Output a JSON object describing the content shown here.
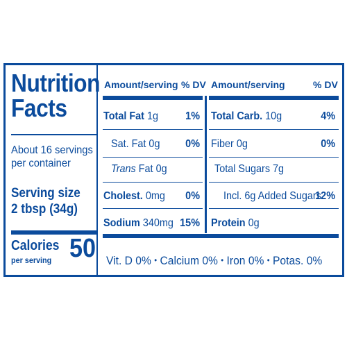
{
  "title": {
    "line1": "Nutrition",
    "line2": "Facts"
  },
  "servings": {
    "line1": "About 16 servings",
    "line2": "per container"
  },
  "serving_size": {
    "label": "Serving size",
    "value": "2 tbsp (34g)"
  },
  "calories": {
    "label": "Calories",
    "sub": "per serving",
    "value": "50"
  },
  "header": {
    "amount_left": "Amount/serving",
    "dv_left": "% DV",
    "amount_right": "Amount/serving",
    "dv_right": "% DV"
  },
  "left_rows": [
    {
      "name": "Total Fat",
      "amount": "1g",
      "dv": "1%"
    },
    {
      "name": "Sat. Fat",
      "amount": "0g",
      "dv": "0%"
    },
    {
      "name": "Trans",
      "name2": "Fat",
      "amount": "0g",
      "dv": ""
    },
    {
      "name": "Cholest.",
      "amount": "0mg",
      "dv": "0%"
    },
    {
      "name": "Sodium",
      "amount": "340mg",
      "dv": "15%"
    }
  ],
  "right_rows": [
    {
      "name": "Total Carb.",
      "amount": "10g",
      "dv": "4%"
    },
    {
      "name": "Fiber",
      "amount": "0g",
      "dv": "0%"
    },
    {
      "name": "Total Sugars",
      "amount": "7g",
      "dv": ""
    },
    {
      "name": "Incl. 6g Added Sugars",
      "amount": "",
      "dv": "12%"
    },
    {
      "name": "Protein",
      "amount": "0g",
      "dv": ""
    }
  ],
  "vitamins": [
    "Vit. D 0%",
    "Calcium 0%",
    "Iron 0%",
    "Potas. 0%"
  ],
  "bullet": "•",
  "colors": {
    "ink": "#0b4b9c",
    "background": "#ffffff"
  }
}
